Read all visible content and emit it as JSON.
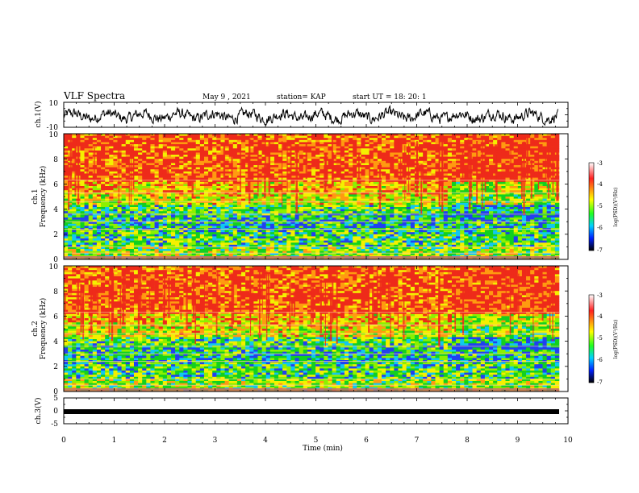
{
  "header": {
    "title": "VLF Spectra",
    "date": "May 9 , 2021",
    "station": "station= KAP",
    "start": "start  UT =   18: 20: 1"
  },
  "chart_data": [
    {
      "type": "line",
      "panel": "ch1-waveform",
      "ylabel": "ch.1(V)",
      "ylim": [
        -10,
        10
      ],
      "yticks": [
        "10",
        "-10"
      ],
      "xlim": [
        0,
        10
      ],
      "series": [
        {
          "pattern": "noisy oscillation",
          "approx_amplitude": [
            -5,
            4
          ]
        }
      ]
    },
    {
      "type": "heatmap",
      "panel": "ch1-spectrogram",
      "ylabel": "ch.1\nFrequency (kHz)",
      "ylim": [
        0,
        10
      ],
      "yticks": [
        "0",
        "2",
        "4",
        "6",
        "8",
        "10"
      ],
      "xlim": [
        0,
        10
      ],
      "colorbar": {
        "label": "log(PSD)(V²/Hz)",
        "range": [
          -7,
          -3
        ],
        "ticks": [
          "-3",
          "-4",
          "-5",
          "-6",
          "-7"
        ]
      }
    },
    {
      "type": "heatmap",
      "panel": "ch2-spectrogram",
      "ylabel": "ch.2\nFrequency (kHz)",
      "ylim": [
        0,
        10
      ],
      "yticks": [
        "0",
        "2",
        "4",
        "6",
        "8",
        "10"
      ],
      "xlim": [
        0,
        10
      ],
      "colorbar": {
        "label": "log(PSD)(V²/Hz)",
        "range": [
          -7,
          -3
        ],
        "ticks": [
          "-3",
          "-4",
          "-5",
          "-6",
          "-7"
        ]
      }
    },
    {
      "type": "line",
      "panel": "ch3-waveform",
      "ylabel": "ch.3(V)",
      "ylim": [
        -5,
        5
      ],
      "yticks": [
        "5",
        "0",
        "-5"
      ],
      "xlim": [
        0,
        10
      ],
      "series": [
        {
          "pattern": "constant thick band",
          "approx_value": 0
        }
      ]
    }
  ],
  "axis": {
    "xlabel": "Time (min)",
    "xticks": [
      "0",
      "1",
      "2",
      "3",
      "4",
      "5",
      "6",
      "7",
      "8",
      "9",
      "10"
    ]
  },
  "ch1": {
    "label": "ch.1(V)",
    "yticks": [
      "10",
      "-10"
    ]
  },
  "spec1": {
    "label_ch": "ch.1",
    "label_freq": "Frequency (kHz)",
    "yticks": [
      "0",
      "2",
      "4",
      "6",
      "8",
      "10"
    ]
  },
  "spec2": {
    "label_ch": "ch.2",
    "label_freq": "Frequency (kHz)",
    "yticks": [
      "0",
      "2",
      "4",
      "6",
      "8",
      "10"
    ]
  },
  "ch3": {
    "label": "ch.3(V)",
    "yticks": [
      "5",
      "0",
      "-5"
    ]
  },
  "colorbar": {
    "label": "log(PSD)(V²/Hz)",
    "ticks": [
      "-3",
      "-4",
      "-5",
      "-6",
      "-7"
    ],
    "stops": [
      "#ffffff",
      "#ff2020",
      "#ffff00",
      "#20ff20",
      "#00d0ff",
      "#0020ff",
      "#000000"
    ]
  },
  "colors": {
    "red": "#ee2a1a",
    "orange": "#ff9a10",
    "yellow": "#f4f000",
    "lime": "#8cf000",
    "green": "#12d020",
    "cyan": "#10c8f0",
    "blue": "#2040f0"
  }
}
